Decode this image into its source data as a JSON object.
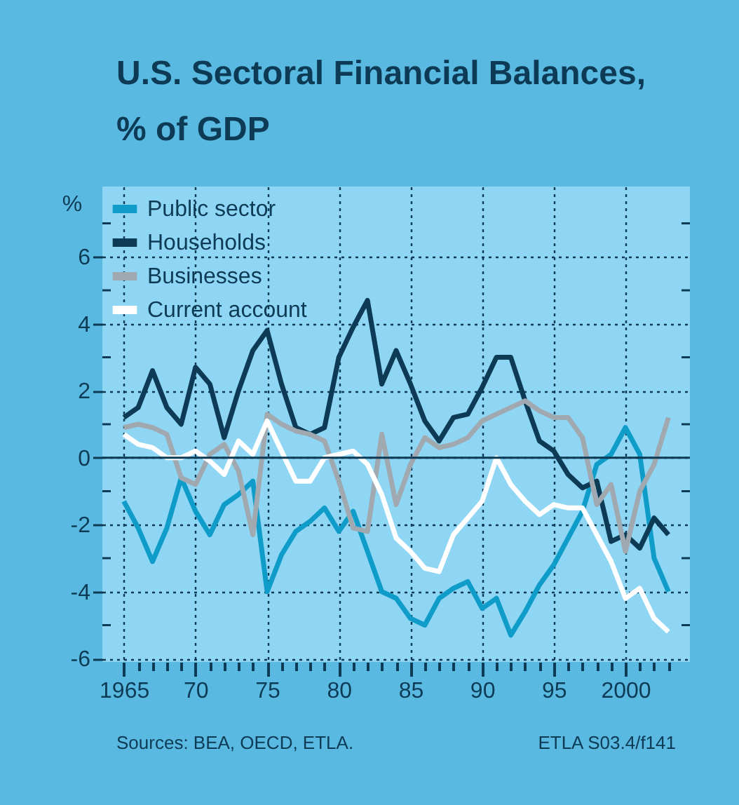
{
  "chart_data": {
    "type": "line",
    "title": "U.S. Sectoral Financial Balances, % of GDP",
    "ylabel": "%",
    "x": [
      1965,
      1966,
      1967,
      1968,
      1969,
      1970,
      1971,
      1972,
      1973,
      1974,
      1975,
      1976,
      1977,
      1978,
      1979,
      1980,
      1981,
      1982,
      1983,
      1984,
      1985,
      1986,
      1987,
      1988,
      1989,
      1990,
      1991,
      1992,
      1993,
      1994,
      1995,
      1996,
      1997,
      1998,
      1999,
      2000,
      2001,
      2002,
      2003
    ],
    "series": [
      {
        "name": "Public sector",
        "color": "#0f9cc8",
        "values": [
          -1.3,
          -2.1,
          -3.1,
          -2.1,
          -0.6,
          -1.6,
          -2.3,
          -1.4,
          -1.1,
          -0.7,
          -4.0,
          -2.9,
          -2.2,
          -1.9,
          -1.5,
          -2.2,
          -1.6,
          -2.8,
          -4.0,
          -4.2,
          -4.8,
          -5.0,
          -4.2,
          -3.9,
          -3.7,
          -4.5,
          -4.2,
          -5.3,
          -4.6,
          -3.8,
          -3.2,
          -2.4,
          -1.6,
          -0.2,
          0.1,
          0.9,
          0.1,
          -3.0,
          -4.0
        ]
      },
      {
        "name": "Households",
        "color": "#0d3b55",
        "values": [
          1.2,
          1.5,
          2.6,
          1.5,
          1.0,
          2.7,
          2.2,
          0.6,
          2.0,
          3.2,
          3.8,
          2.2,
          0.9,
          0.7,
          0.9,
          3.0,
          3.9,
          4.7,
          2.2,
          3.2,
          2.2,
          1.1,
          0.5,
          1.2,
          1.3,
          2.1,
          3.0,
          3.0,
          1.7,
          0.5,
          0.2,
          -0.5,
          -0.9,
          -0.7,
          -2.5,
          -2.3,
          -2.7,
          -1.8,
          -2.3
        ]
      },
      {
        "name": "Businesses",
        "color": "#a0a9b0",
        "values": [
          0.9,
          1.0,
          0.9,
          0.7,
          -0.6,
          -0.8,
          0.1,
          0.4,
          -0.4,
          -2.3,
          1.3,
          1.0,
          0.8,
          0.7,
          0.5,
          -0.7,
          -2.1,
          -2.2,
          0.7,
          -1.4,
          -0.2,
          0.6,
          0.3,
          0.4,
          0.6,
          1.1,
          1.3,
          1.5,
          1.7,
          1.4,
          1.2,
          1.2,
          0.6,
          -1.4,
          -0.8,
          -2.8,
          -1.0,
          -0.2,
          1.2
        ]
      },
      {
        "name": "Current account",
        "color": "#ffffff",
        "values": [
          0.7,
          0.4,
          0.3,
          0.0,
          0.0,
          0.2,
          -0.1,
          -0.5,
          0.5,
          0.1,
          1.1,
          0.2,
          -0.7,
          -0.7,
          0.0,
          0.1,
          0.2,
          -0.2,
          -1.1,
          -2.4,
          -2.8,
          -3.3,
          -3.4,
          -2.3,
          -1.8,
          -1.3,
          0.0,
          -0.8,
          -1.3,
          -1.7,
          -1.4,
          -1.5,
          -1.5,
          -2.3,
          -3.1,
          -4.2,
          -3.9,
          -4.8,
          -5.2
        ]
      }
    ],
    "xlim": [
      1963.5,
      2004.5
    ],
    "xticks": [
      1965,
      {
        "value": 1966,
        "label": null
      },
      {
        "value": 1967,
        "label": null
      },
      {
        "value": 1968,
        "label": null
      },
      {
        "value": 1969,
        "label": null
      },
      {
        "value": 1970,
        "label": "70"
      },
      {
        "value": 1971,
        "label": null
      },
      {
        "value": 1972,
        "label": null
      },
      {
        "value": 1973,
        "label": null
      },
      {
        "value": 1974,
        "label": null
      },
      {
        "value": 1975,
        "label": "75"
      },
      {
        "value": 1976,
        "label": null
      },
      {
        "value": 1977,
        "label": null
      },
      {
        "value": 1978,
        "label": null
      },
      {
        "value": 1979,
        "label": null
      },
      {
        "value": 1980,
        "label": "80"
      },
      {
        "value": 1981,
        "label": null
      },
      {
        "value": 1982,
        "label": null
      },
      {
        "value": 1983,
        "label": null
      },
      {
        "value": 1984,
        "label": null
      },
      {
        "value": 1985,
        "label": "85"
      },
      {
        "value": 1986,
        "label": null
      },
      {
        "value": 1987,
        "label": null
      },
      {
        "value": 1988,
        "label": null
      },
      {
        "value": 1989,
        "label": null
      },
      {
        "value": 1990,
        "label": "90"
      },
      {
        "value": 1991,
        "label": null
      },
      {
        "value": 1992,
        "label": null
      },
      {
        "value": 1993,
        "label": null
      },
      {
        "value": 1994,
        "label": null
      },
      {
        "value": 1995,
        "label": "95"
      },
      {
        "value": 1996,
        "label": null
      },
      {
        "value": 1997,
        "label": null
      },
      {
        "value": 1998,
        "label": null
      },
      {
        "value": 1999,
        "label": null
      },
      2000,
      {
        "value": 2001,
        "label": null
      },
      {
        "value": 2002,
        "label": null
      },
      {
        "value": 2003,
        "label": null
      }
    ],
    "ylim": [
      -6.1,
      8.1
    ],
    "yticks": [
      -6,
      {
        "value": -5,
        "label": null
      },
      -4,
      {
        "value": -3,
        "label": null
      },
      -2,
      {
        "value": -1,
        "label": null
      },
      0,
      {
        "value": 1,
        "label": null
      },
      2,
      {
        "value": 3,
        "label": null
      },
      4,
      {
        "value": 5,
        "label": null
      },
      6,
      {
        "value": 7,
        "label": null
      }
    ],
    "grid": true,
    "legend": "top left",
    "line_style": "solid",
    "ref_lines": [
      {
        "axis": "y",
        "value": 0,
        "color": "#0d3b55",
        "line_style": "solid"
      }
    ],
    "annotations": [
      "Sources: BEA, OECD, ETLA.",
      "ETLA S03.4/f141"
    ]
  }
}
